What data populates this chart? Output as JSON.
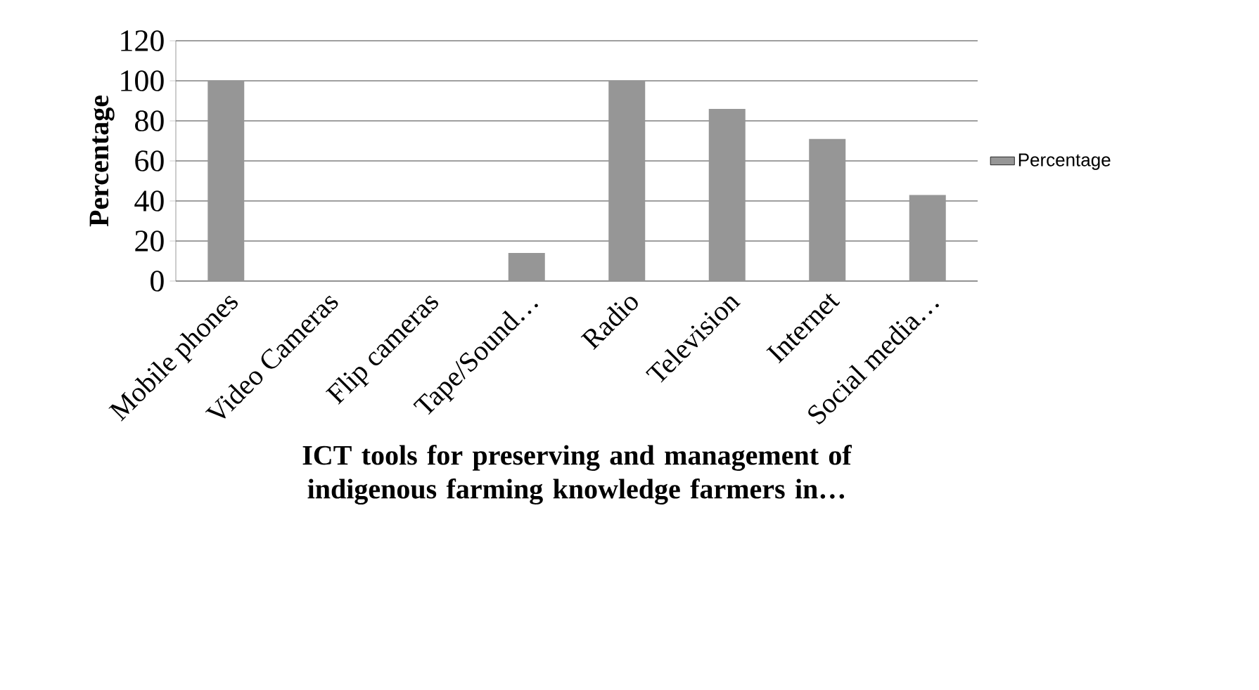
{
  "chart_data": {
    "type": "bar",
    "xlabel": "ICT tools for preserving and management of indigenous farming knowledge farmers in…",
    "ylabel": "Percentage",
    "categories": [
      "Mobile phones",
      "Video Cameras",
      "Flip cameras",
      "Tape/Sound…",
      "Radio",
      "Television",
      "Internet",
      "Social media…"
    ],
    "series": [
      {
        "name": "Percentage",
        "color": "#969696",
        "values": [
          100,
          0,
          0,
          14,
          100,
          86,
          71,
          43
        ]
      }
    ],
    "ylim": [
      0,
      120
    ],
    "yticks": [
      0,
      20,
      40,
      60,
      80,
      100,
      120
    ],
    "grid": "y",
    "legend": "right"
  }
}
